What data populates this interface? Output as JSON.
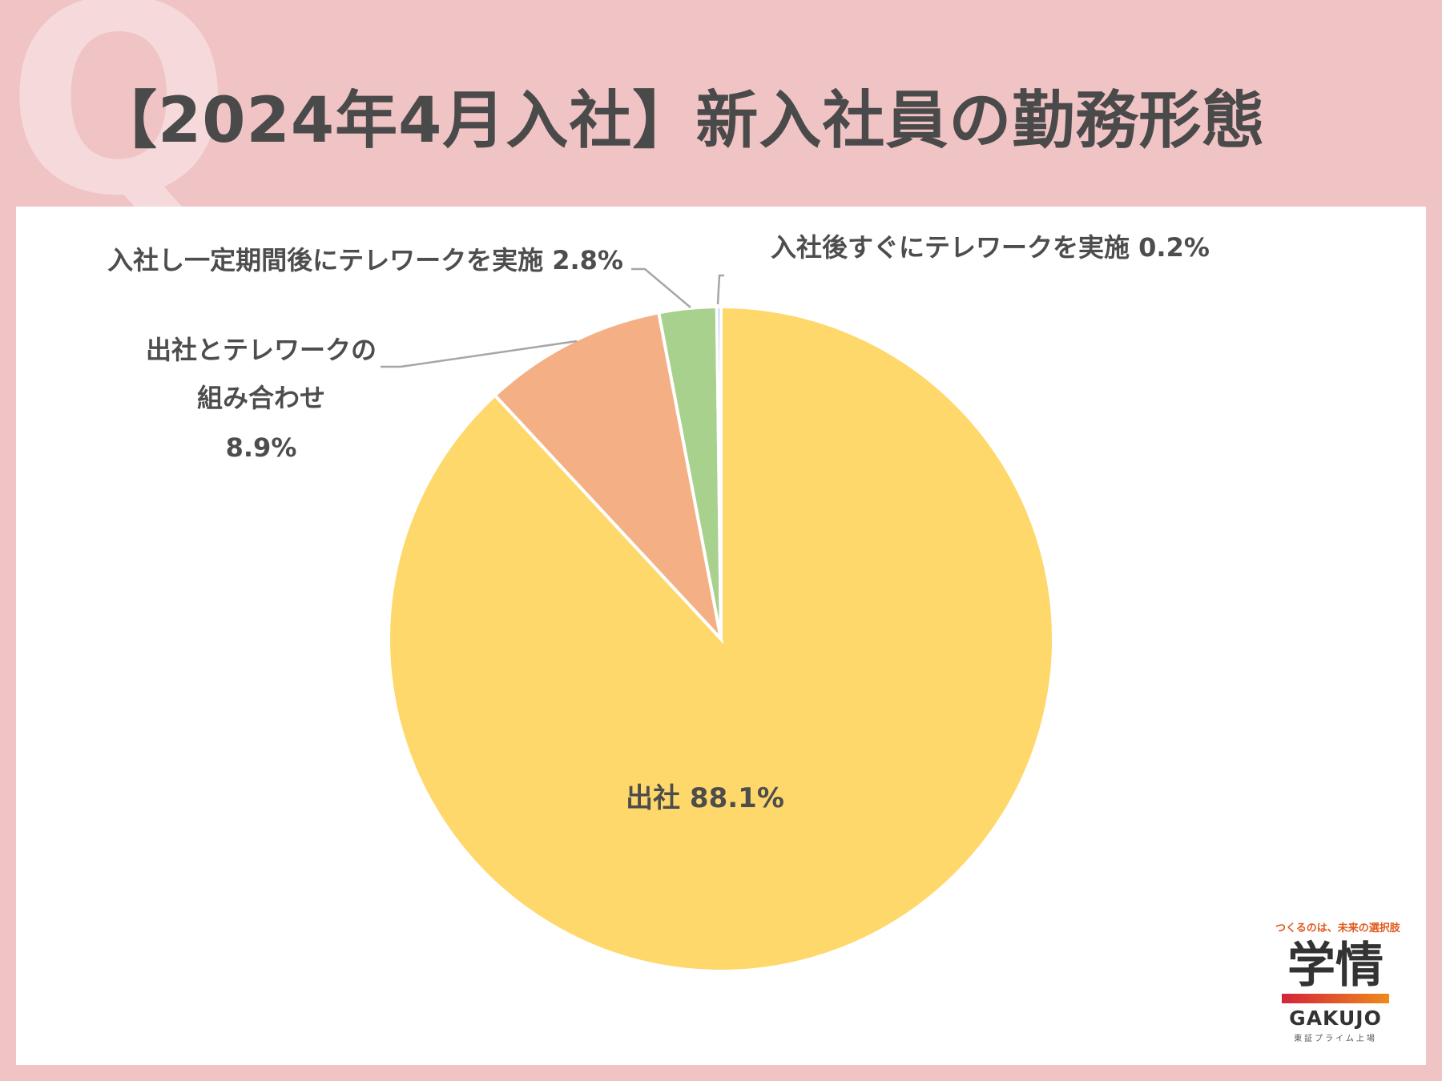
{
  "header": {
    "title": "【2024年4月入社】新入社員の勤務形態",
    "decor_letter": "Q"
  },
  "chart_data": {
    "type": "pie",
    "title": "【2024年4月入社】新入社員の勤務形態",
    "slices": [
      {
        "name": "出社",
        "value": 88.1,
        "label": "出社 88.1%",
        "color": "#fed86b"
      },
      {
        "name": "出社とテレワークの組み合わせ",
        "value": 8.9,
        "label_lines": [
          "出社とテレワークの",
          "組み合わせ",
          "8.9%"
        ],
        "color": "#f4b084"
      },
      {
        "name": "入社し一定期間後にテレワークを実施",
        "value": 2.8,
        "label": "入社し一定期間後にテレワークを実施 2.8%",
        "color": "#a9d18e"
      },
      {
        "name": "入社後すぐにテレワークを実施",
        "value": 0.2,
        "label": "入社後すぐにテレワークを実施 0.2%",
        "color": "#9dc3e6"
      }
    ],
    "start": "12 o'clock",
    "direction": "clockwise"
  },
  "logo": {
    "tagline": "つくるのは、未来の選択肢",
    "brand": "学情",
    "latin": "GAKUJO",
    "exchange": "東証プライム上場"
  }
}
